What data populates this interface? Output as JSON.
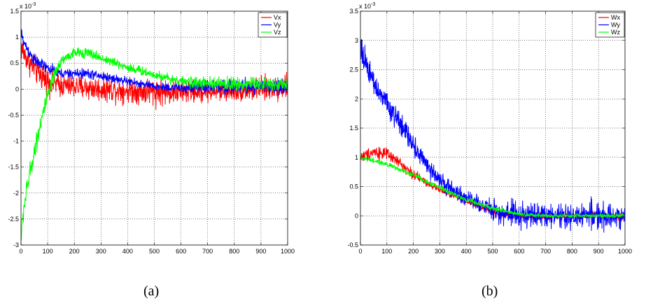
{
  "panels": [
    {
      "label": "(a)"
    },
    {
      "label": "(b)"
    }
  ],
  "chart_data": [
    {
      "type": "line",
      "exponent_label": "x 10",
      "exponent_power": "-3",
      "xlim": [
        0,
        1000
      ],
      "ylim": [
        -3,
        1.5
      ],
      "x_ticks": [
        0,
        100,
        200,
        300,
        400,
        500,
        600,
        700,
        800,
        900,
        1000
      ],
      "x_tick_labels": [
        "0",
        "100",
        "200",
        "300",
        "400",
        "500",
        "600",
        "700",
        "800",
        "900",
        "1000"
      ],
      "y_ticks": [
        -3,
        -2.5,
        -2,
        -1.5,
        -1,
        -0.5,
        0,
        0.5,
        1,
        1.5
      ],
      "y_tick_labels": [
        "-3",
        "-2.5",
        "-2",
        "-1.5",
        "-1",
        "-0.5",
        "0",
        "0.5",
        "1",
        "1.5"
      ],
      "grid": true,
      "legend_position": "top-right",
      "n_points": 1000,
      "series": [
        {
          "name": "Vx",
          "color": "#ff0000",
          "trend_x": [
            0,
            20,
            50,
            100,
            150,
            200,
            300,
            400,
            500,
            600,
            700,
            800,
            900,
            1000
          ],
          "trend_y": [
            0.8,
            0.6,
            0.4,
            0.15,
            0.08,
            0.05,
            0.0,
            -0.02,
            -0.05,
            -0.05,
            -0.05,
            -0.03,
            0.0,
            0.05
          ],
          "noise": [
            0.35,
            0.35,
            0.4,
            0.4,
            0.35,
            0.35,
            0.35,
            0.35,
            0.4,
            0.35,
            0.3,
            0.3,
            0.35,
            0.35
          ]
        },
        {
          "name": "Vy",
          "color": "#0000ff",
          "trend_x": [
            0,
            10,
            50,
            100,
            150,
            200,
            250,
            300,
            400,
            500,
            600,
            700,
            800,
            900,
            1000
          ],
          "trend_y": [
            1.1,
            0.9,
            0.55,
            0.4,
            0.3,
            0.3,
            0.3,
            0.25,
            0.15,
            0.05,
            0.02,
            0.05,
            0.05,
            0.05,
            0.05
          ],
          "noise": [
            0.15,
            0.18,
            0.18,
            0.16,
            0.14,
            0.14,
            0.14,
            0.14,
            0.12,
            0.12,
            0.14,
            0.2,
            0.22,
            0.22,
            0.2
          ]
        },
        {
          "name": "Vz",
          "color": "#00ff00",
          "trend_x": [
            0,
            10,
            30,
            50,
            75,
            100,
            125,
            150,
            200,
            250,
            300,
            400,
            500,
            600,
            700,
            800,
            900,
            1000
          ],
          "trend_y": [
            -2.9,
            -2.3,
            -1.7,
            -1.2,
            -0.6,
            -0.15,
            0.25,
            0.55,
            0.7,
            0.7,
            0.6,
            0.42,
            0.28,
            0.15,
            0.1,
            0.1,
            0.1,
            0.1
          ],
          "noise": [
            0.2,
            0.3,
            0.3,
            0.3,
            0.3,
            0.25,
            0.2,
            0.16,
            0.15,
            0.15,
            0.14,
            0.14,
            0.14,
            0.14,
            0.18,
            0.2,
            0.2,
            0.2
          ]
        }
      ]
    },
    {
      "type": "line",
      "exponent_label": "x 10",
      "exponent_power": "-3",
      "xlim": [
        0,
        1000
      ],
      "ylim": [
        -0.5,
        3.5
      ],
      "x_ticks": [
        0,
        100,
        200,
        300,
        400,
        500,
        600,
        700,
        800,
        900,
        1000
      ],
      "x_tick_labels": [
        "0",
        "100",
        "200",
        "300",
        "400",
        "500",
        "600",
        "700",
        "800",
        "900",
        "1000"
      ],
      "y_ticks": [
        -0.5,
        0,
        0.5,
        1,
        1.5,
        2,
        2.5,
        3,
        3.5
      ],
      "y_tick_labels": [
        "-0.5",
        "0",
        "0.5",
        "1",
        "1.5",
        "2",
        "2.5",
        "3",
        "3.5"
      ],
      "grid": true,
      "legend_position": "top-right",
      "n_points": 1000,
      "series": [
        {
          "name": "Wx",
          "color": "#ff0000",
          "trend_x": [
            0,
            50,
            100,
            150,
            200,
            300,
            400,
            500,
            600,
            700,
            800,
            900,
            1000
          ],
          "trend_y": [
            1.0,
            1.1,
            1.05,
            0.9,
            0.7,
            0.45,
            0.25,
            0.05,
            0.0,
            -0.02,
            0.0,
            0.0,
            0.0
          ],
          "noise": [
            0.15,
            0.18,
            0.15,
            0.14,
            0.12,
            0.1,
            0.1,
            0.1,
            0.1,
            0.1,
            0.1,
            0.1,
            0.1
          ]
        },
        {
          "name": "Wy",
          "color": "#0000ff",
          "trend_x": [
            0,
            10,
            50,
            100,
            150,
            200,
            250,
            300,
            400,
            500,
            600,
            700,
            800,
            900,
            1000
          ],
          "trend_y": [
            2.9,
            2.75,
            2.3,
            1.9,
            1.55,
            1.2,
            0.9,
            0.6,
            0.3,
            0.1,
            0.02,
            0.0,
            0.0,
            0.0,
            0.0
          ],
          "noise": [
            0.25,
            0.3,
            0.3,
            0.28,
            0.3,
            0.28,
            0.25,
            0.22,
            0.2,
            0.25,
            0.35,
            0.35,
            0.35,
            0.35,
            0.35
          ]
        },
        {
          "name": "Wz",
          "color": "#00ff00",
          "trend_x": [
            0,
            100,
            200,
            300,
            400,
            500,
            600,
            700,
            800,
            900,
            1000
          ],
          "trend_y": [
            1.0,
            0.88,
            0.7,
            0.48,
            0.28,
            0.12,
            0.03,
            0.0,
            0.0,
            0.0,
            0.0
          ],
          "noise": [
            0.06,
            0.06,
            0.06,
            0.06,
            0.06,
            0.06,
            0.05,
            0.05,
            0.05,
            0.05,
            0.05
          ]
        }
      ]
    }
  ]
}
